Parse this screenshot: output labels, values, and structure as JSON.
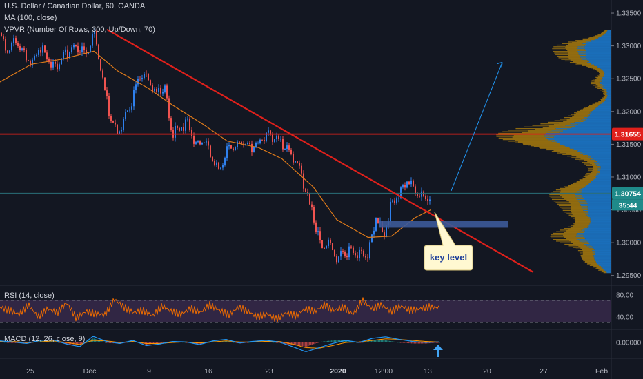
{
  "header": {
    "symbol_line": "U.S. Dollar / Canadian Dollar, 60, OANDA",
    "ma_line": "MA (100, close)",
    "vpvr_line": "VPVR (Number Of Rows, 300, Up/Down, 70)"
  },
  "panes": {
    "rsi_label": "RSI (14, close)",
    "macd_label": "MACD (12, 26, close, 9)"
  },
  "colors": {
    "background": "#131722",
    "candle_up": "#2f80ed",
    "candle_down": "#ef5350",
    "trendline": "#e0201b",
    "resistance": "#e0201b",
    "ma": "#e07b1a",
    "vpvr_up": "#1e88e5",
    "vpvr_down": "#b8860b",
    "projection": "#2196f3",
    "key_box": "#3d5a99",
    "callout_bg": "#fff8d1",
    "callout_text": "#1e3f9a",
    "rsi_line": "#ef6c00",
    "rsi_band": "#3a2a4e",
    "macd_line": "#2196f3",
    "signal_line": "#ff9800",
    "arrow_up": "#42a5f5"
  },
  "annotations": {
    "key_level": "key level"
  },
  "chart_data": [
    {
      "type": "line",
      "title": "U.S. Dollar / Canadian Dollar, 60, OANDA",
      "x_ticks": [
        "25",
        "Dec",
        "9",
        "16",
        "23",
        "2020",
        "12:00",
        "13",
        "20",
        "27",
        "Feb"
      ],
      "y_ticks": [
        "1.33500",
        "1.33000",
        "1.32500",
        "1.32000",
        "1.31500",
        "1.31000",
        "1.30500",
        "1.30000",
        "1.29500"
      ],
      "ylim": [
        1.2935,
        1.337
      ],
      "price_labels": {
        "resistance": "1.31655",
        "last": "1.30754",
        "countdown": "35:44"
      },
      "resistance_level": 1.31655,
      "last_price": 1.30754,
      "series": [
        {
          "name": "",
          "x": [
            "2019-11-21",
            "2019-11-22",
            "2019-11-23",
            "2019-11-25",
            "2019-11-26",
            "2019-11-27",
            "2019-11-28",
            "2019-11-29",
            "2019-12-01",
            "2019-12-02",
            "2019-12-03",
            "2019-12-04",
            "2019-12-05",
            "2019-12-06",
            "2019-12-08",
            "2019-12-09",
            "2019-12-10",
            "2019-12-11",
            "2019-12-12",
            "2019-12-13",
            "2019-12-15",
            "2019-12-16",
            "2019-12-17",
            "2019-12-18",
            "2019-12-19",
            "2019-12-20",
            "2019-12-22",
            "2019-12-23",
            "2019-12-24",
            "2019-12-25",
            "2019-12-26",
            "2019-12-27",
            "2019-12-29",
            "2019-12-30",
            "2019-12-31",
            "2020-01-01",
            "2020-01-02",
            "2020-01-03",
            "2020-01-05",
            "2020-01-06",
            "2020-01-07",
            "2020-01-08",
            "2020-01-09",
            "2020-01-10",
            "2020-01-12",
            "2020-01-13",
            "2020-01-14",
            "2020-01-15"
          ],
          "values": [
            1.332,
            1.329,
            1.331,
            1.327,
            1.33,
            1.3285,
            1.3265,
            1.3285,
            1.33,
            1.328,
            1.332,
            1.3255,
            1.3195,
            1.3165,
            1.322,
            1.326,
            1.3245,
            1.3225,
            1.324,
            1.3165,
            1.3185,
            1.315,
            1.3155,
            1.313,
            1.311,
            1.314,
            1.3155,
            1.3145,
            1.315,
            1.3165,
            1.316,
            1.315,
            1.312,
            1.308,
            1.304,
            1.299,
            1.3,
            1.2975,
            1.299,
            1.298,
            1.2985,
            1.304,
            1.301,
            1.306,
            1.3095,
            1.308,
            1.3068,
            1.3075
          ]
        },
        {
          "name": "MA (100, close)",
          "x": [
            "2019-11-21",
            "2019-11-25",
            "2019-11-29",
            "2019-12-03",
            "2019-12-06",
            "2019-12-10",
            "2019-12-13",
            "2019-12-17",
            "2019-12-20",
            "2019-12-24",
            "2019-12-27",
            "2019-12-31",
            "2020-01-03",
            "2020-01-07",
            "2020-01-10",
            "2020-01-13",
            "2020-01-15"
          ],
          "values": [
            1.3245,
            1.3272,
            1.328,
            1.3292,
            1.3262,
            1.3235,
            1.321,
            1.318,
            1.3155,
            1.3145,
            1.3128,
            1.3085,
            1.3035,
            1.3008,
            1.301,
            1.3038,
            1.305
          ]
        }
      ]
    },
    {
      "type": "line",
      "title": "RSI (14, close)",
      "y_ticks": [
        "80.00",
        "40.00"
      ],
      "ylim": [
        20,
        90
      ],
      "bands": [
        30,
        70
      ],
      "series": [
        {
          "name": "RSI (14, close)",
          "values": [
            58,
            52,
            45,
            62,
            40,
            55,
            48,
            66,
            38,
            50,
            46,
            44,
            72,
            58,
            48,
            52,
            42,
            60,
            50,
            45,
            56,
            48,
            62,
            52,
            44,
            58,
            50,
            40,
            46,
            36,
            48,
            42,
            55,
            50,
            62,
            52,
            58,
            45,
            70,
            55,
            62,
            50,
            60,
            52,
            55,
            58,
            57
          ]
        }
      ]
    },
    {
      "type": "line",
      "title": "MACD (12, 26, close, 9)",
      "y_ticks": [
        "0.00000"
      ],
      "ylim": [
        -0.0028,
        0.002
      ],
      "series": [
        {
          "name": "MACD",
          "values": [
            0.0003,
            0.0001,
            -0.0002,
            0.0004,
            0.0005,
            -0.0003,
            -0.0008,
            0.0012,
            0.0002,
            -0.0002,
            0.0004,
            -0.0006,
            -0.0003,
            0.0002,
            0.0001,
            -0.0004,
            0.0003,
            0.0006,
            -0.0001,
            0.0002,
            0.0004,
            0.0001,
            -0.0008,
            -0.0018,
            -0.001,
            -0.0002,
            0.0004,
            0.0,
            0.0008,
            0.0011,
            0.0006,
            0.0002,
            0.0,
            0.0001
          ]
        },
        {
          "name": "Signal",
          "values": [
            0.0002,
            0.0002,
            0.0,
            0.0001,
            0.0003,
            0.0,
            -0.0004,
            0.0004,
            0.0003,
            0.0,
            0.0002,
            -0.0002,
            -0.0002,
            0.0,
            0.0001,
            -0.0001,
            0.0001,
            0.0003,
            0.0001,
            0.0001,
            0.0002,
            0.0002,
            -0.0003,
            -0.001,
            -0.0011,
            -0.0006,
            0.0,
            0.0001,
            0.0004,
            0.0007,
            0.0006,
            0.0004,
            0.0002,
            0.0001
          ]
        }
      ]
    }
  ]
}
